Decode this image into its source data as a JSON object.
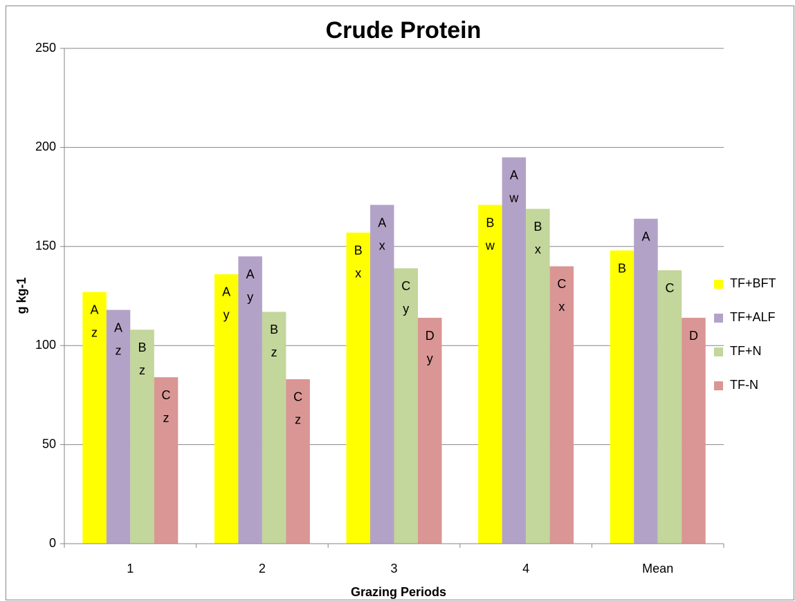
{
  "chart_data": {
    "type": "bar",
    "title": "Crude Protein",
    "x_label": "Grazing Periods",
    "y_label": "g kg-1",
    "categories": [
      "1",
      "2",
      "3",
      "4",
      "Mean"
    ],
    "series": [
      {
        "name": "TF+BFT",
        "color": "#ffff00",
        "values": [
          127,
          136,
          157,
          171,
          148
        ],
        "letters": [
          [
            "A",
            "z"
          ],
          [
            "A",
            "y"
          ],
          [
            "B",
            "x"
          ],
          [
            "B",
            "w"
          ],
          [
            "B"
          ]
        ]
      },
      {
        "name": "TF+ALF",
        "color": "#b3a2c7",
        "values": [
          118,
          145,
          171,
          195,
          164
        ],
        "letters": [
          [
            "A",
            "z"
          ],
          [
            "A",
            "y"
          ],
          [
            "A",
            "x"
          ],
          [
            "A",
            "w"
          ],
          [
            "A"
          ]
        ]
      },
      {
        "name": "TF+N",
        "color": "#c3d69b",
        "values": [
          108,
          117,
          139,
          169,
          138
        ],
        "letters": [
          [
            "B",
            "z"
          ],
          [
            "B",
            "z"
          ],
          [
            "C",
            "y"
          ],
          [
            "B",
            "x"
          ],
          [
            "C"
          ]
        ]
      },
      {
        "name": "TF-N",
        "color": "#d99694",
        "values": [
          84,
          83,
          114,
          140,
          114
        ],
        "letters": [
          [
            "C",
            "z"
          ],
          [
            "C",
            "z"
          ],
          [
            "D",
            "y"
          ],
          [
            "C",
            "x"
          ],
          [
            "D"
          ]
        ]
      }
    ],
    "ylim": [
      0,
      250
    ],
    "yticks": [
      0,
      50,
      100,
      150,
      200,
      250
    ],
    "grid": true,
    "legend": "right"
  }
}
